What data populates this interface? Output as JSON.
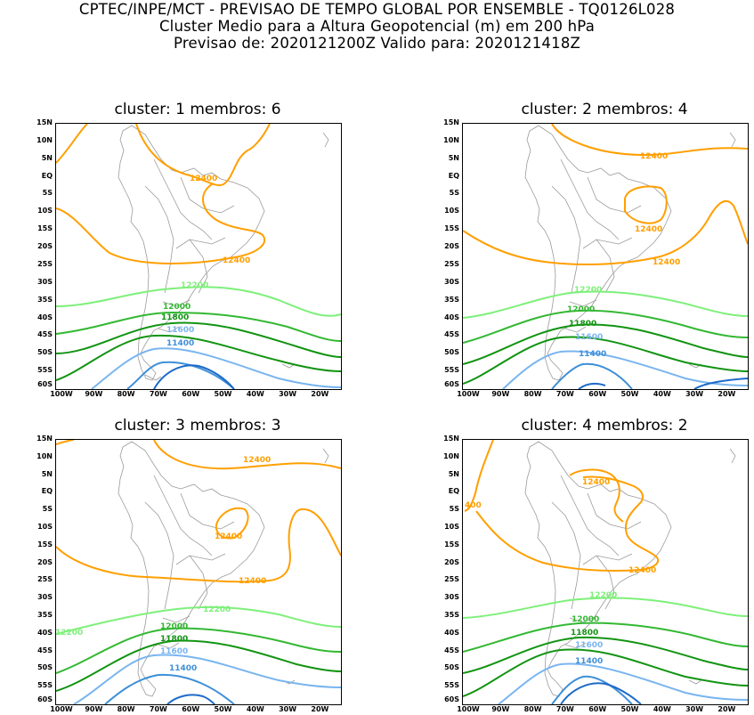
{
  "header": {
    "line1": "CPTEC/INPE/MCT - PREVISAO DE TEMPO GLOBAL POR ENSEMBLE - TQ0126L028",
    "line2": "Cluster Medio para a Altura Geopotencial (m) em 200 hPa",
    "line3": "Previsao de: 2020121200Z   Valido para: 2020121418Z"
  },
  "lat_ticks": [
    "15N",
    "10N",
    "5N",
    "EQ",
    "5S",
    "10S",
    "15S",
    "20S",
    "25S",
    "30S",
    "35S",
    "40S",
    "45S",
    "50S",
    "55S",
    "60S"
  ],
  "lon_ticks": [
    "100W",
    "90W",
    "80W",
    "70W",
    "60W",
    "50W",
    "40W",
    "30W",
    "20W"
  ],
  "colors": {
    "c12400": "#ff9f00",
    "c12200": "#7ef07a",
    "c12000": "#33b833",
    "c11800": "#129412",
    "c11600": "#79b5ef",
    "c11400": "#3e8fd8",
    "c11200": "#1d6ac8",
    "coast": "#9a9a9a"
  },
  "panels": [
    {
      "title": "cluster: 1   membros: 6",
      "contour_labels": {
        "l12400a": "12400",
        "l12400b": "12400",
        "l12200": "12200",
        "l12000": "12000",
        "l11800": "11800",
        "l11600": "11600",
        "l11400": "11400"
      }
    },
    {
      "title": "cluster: 2   membros: 4",
      "contour_labels": {
        "l12400a": "12400",
        "l12400b": "12400",
        "l12400c": "12400",
        "l12200": "12200",
        "l12000": "12000",
        "l11800": "11800",
        "l11600": "11600",
        "l11400": "11400"
      }
    },
    {
      "title": "cluster: 3   membros: 3",
      "contour_labels": {
        "l12400a": "12400",
        "l12400b": "12400",
        "l12400c": "12400",
        "l12200a": "12200",
        "l12200b": "12200",
        "l12000": "12000",
        "l11800": "11800",
        "l11600": "11600",
        "l11400": "11400"
      }
    },
    {
      "title": "cluster: 4   membros: 2",
      "contour_labels": {
        "l12400a": "12400",
        "l12400b": "12400",
        "l12400c": "400",
        "l12200": "12200",
        "l12000": "12000",
        "l11800": "11800",
        "l11600": "11600",
        "l11400": "11400"
      }
    }
  ]
}
